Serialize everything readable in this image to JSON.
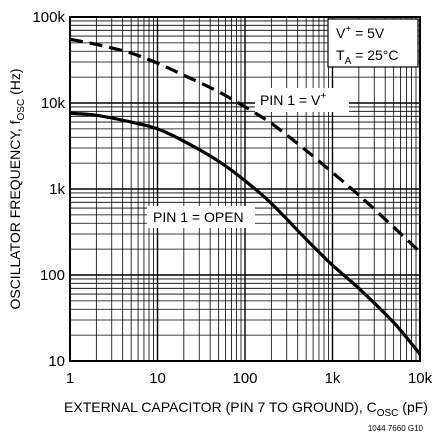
{
  "chart_data": {
    "type": "line",
    "x_scale": "log",
    "y_scale": "log",
    "xlim": [
      1,
      10000
    ],
    "ylim": [
      10,
      100000
    ],
    "x_ticks": [
      "1",
      "10",
      "100",
      "1k",
      "10k"
    ],
    "y_ticks": [
      "100k",
      "10k",
      "1k",
      "100",
      "10"
    ],
    "xlabel": {
      "text": "EXTERNAL CAPACITOR (PIN 7 TO GROUND), C",
      "sub": "OSC",
      "suffix": " (pF)"
    },
    "ylabel": {
      "text": "OSCILLATOR FREQUENCY, f",
      "sub": "OSC",
      "suffix": " (Hz)"
    },
    "grid": true,
    "conditions": {
      "line1_main": "V",
      "line1_sup": "+",
      "line1_rest": " = 5V",
      "line2_main": "T",
      "line2_sub": "A",
      "line2_rest": " = 25°C"
    },
    "series": [
      {
        "name": "PIN 1 = V+",
        "label_main": "PIN 1 = V",
        "label_sup": "+",
        "style": "dashed",
        "x": [
          1,
          2,
          5,
          10,
          20,
          50,
          100,
          200,
          500,
          1000,
          2000,
          5000,
          10000
        ],
        "y": [
          55000,
          48000,
          38000,
          29000,
          21000,
          13500,
          9000,
          5800,
          2800,
          1550,
          850,
          360,
          185
        ]
      },
      {
        "name": "PIN 1 = OPEN",
        "label": "PIN 1 = OPEN",
        "style": "solid",
        "x": [
          1,
          2,
          5,
          10,
          20,
          50,
          100,
          200,
          500,
          1000,
          2000,
          5000,
          10000
        ],
        "y": [
          7600,
          7200,
          6000,
          5000,
          3600,
          2100,
          1250,
          680,
          260,
          130,
          70,
          28,
          12
        ]
      }
    ],
    "figure_code": "1044 7660 G10"
  },
  "colors": {
    "line": "#000000",
    "grid": "#000000",
    "background": "#ffffff"
  }
}
